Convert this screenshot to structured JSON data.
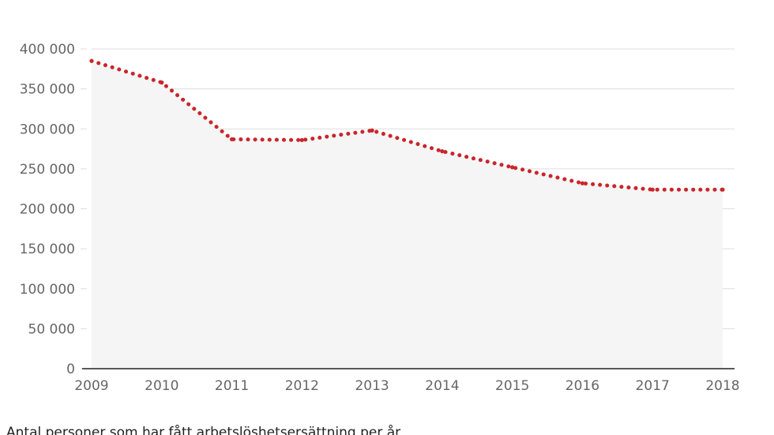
{
  "chart_data": {
    "type": "area",
    "x": [
      "2009",
      "2010",
      "2011",
      "2012",
      "2013",
      "2014",
      "2015",
      "2016",
      "2017",
      "2018"
    ],
    "series": [
      {
        "values": [
          385000,
          358000,
          287000,
          286000,
          298000,
          272000,
          252000,
          232000,
          224000,
          224000
        ]
      }
    ],
    "y_ticks": [
      "0",
      "50 000",
      "100 000",
      "150 000",
      "200 000",
      "250 000",
      "300 000",
      "350 000",
      "400 000"
    ],
    "ylim": [
      0,
      400000
    ],
    "grid": true,
    "legend": "none",
    "caption": "Antal personer som har fått arbetslöshetsersättning per år",
    "colors": {
      "line": "#c9262b",
      "area": "#f5f5f5",
      "grid": "#dddddd",
      "axis": "#222222"
    }
  }
}
